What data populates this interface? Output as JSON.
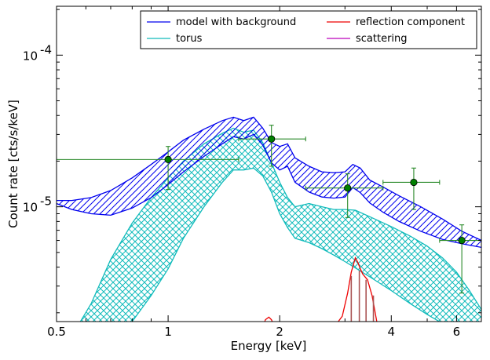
{
  "chart_data": {
    "type": "line",
    "xlabel": "Energy [keV]",
    "ylabel": "Count rate [cts/s/keV]",
    "x_scale": "log",
    "y_scale": "log",
    "xlim": [
      0.5,
      7.0
    ],
    "ylim": [
      1.75e-06,
      0.00021
    ],
    "x_ticks": [
      {
        "value": 0.5,
        "label": "0.5"
      },
      {
        "value": 1,
        "label": "1"
      },
      {
        "value": 2,
        "label": "2"
      },
      {
        "value": 4,
        "label": "4"
      },
      {
        "value": 6,
        "label": "6"
      }
    ],
    "y_ticks": [
      {
        "value": 1e-05,
        "base": "10",
        "exp": "-5"
      },
      {
        "value": 0.0001,
        "base": "10",
        "exp": "-4"
      }
    ],
    "legend": {
      "placement": "top-right",
      "entries": [
        {
          "label": "model with background",
          "color": "#0000ee"
        },
        {
          "label": "reflection component",
          "color": "#ee0000"
        },
        {
          "label": "torus",
          "color": "#11bbbb"
        },
        {
          "label": "scattering",
          "color": "#bb00bb"
        }
      ]
    },
    "colors": {
      "model": "#0000ee",
      "torus": "#11bbbb",
      "reflection": "#ee0000",
      "scattering": "#bb00bb",
      "data": "#2a8a2a",
      "marker": "#008000"
    },
    "series": [
      {
        "name": "model with background",
        "kind": "band",
        "x": [
          0.5,
          0.55,
          0.62,
          0.7,
          0.8,
          0.9,
          1.0,
          1.1,
          1.25,
          1.4,
          1.5,
          1.6,
          1.7,
          1.8,
          1.9,
          2.0,
          2.1,
          2.2,
          2.4,
          2.6,
          2.8,
          3.0,
          3.15,
          3.3,
          3.5,
          3.8,
          4.2,
          4.8,
          5.5,
          6.2,
          7.0
        ],
        "upper": [
          1.1e-05,
          1.1e-05,
          1.15e-05,
          1.28e-05,
          1.55e-05,
          1.9e-05,
          2.3e-05,
          2.75e-05,
          3.25e-05,
          3.7e-05,
          3.9e-05,
          3.7e-05,
          3.9e-05,
          3.3e-05,
          2.65e-05,
          2.5e-05,
          2.6e-05,
          2.1e-05,
          1.85e-05,
          1.7e-05,
          1.68e-05,
          1.7e-05,
          1.9e-05,
          1.8e-05,
          1.5e-05,
          1.35e-05,
          1.18e-05,
          1e-05,
          8.3e-06,
          6.9e-06,
          6e-06
        ],
        "lower": [
          1.05e-05,
          9.6e-06,
          9e-06,
          8.8e-06,
          9.8e-06,
          1.15e-05,
          1.4e-05,
          1.7e-05,
          2.15e-05,
          2.6e-05,
          2.9e-05,
          2.8e-05,
          3e-05,
          2.55e-05,
          1.95e-05,
          1.75e-05,
          1.85e-05,
          1.45e-05,
          1.25e-05,
          1.16e-05,
          1.14e-05,
          1.16e-05,
          1.34e-05,
          1.24e-05,
          1.06e-05,
          9.2e-06,
          8e-06,
          6.9e-06,
          6.1e-06,
          5.7e-06,
          5.4e-06
        ]
      },
      {
        "name": "torus",
        "kind": "band",
        "x": [
          0.58,
          0.62,
          0.7,
          0.8,
          0.9,
          1.0,
          1.1,
          1.25,
          1.4,
          1.5,
          1.6,
          1.7,
          1.8,
          1.9,
          2.0,
          2.1,
          2.2,
          2.4,
          2.6,
          2.8,
          3.0,
          3.2,
          3.5,
          4.0,
          4.5,
          5.0,
          5.5,
          6.0,
          6.5,
          7.0
        ],
        "upper": [
          1.75e-06,
          2.3e-06,
          4.5e-06,
          7.8e-06,
          1.15e-05,
          1.55e-05,
          2e-05,
          2.6e-05,
          3.05e-05,
          3.3e-05,
          3.1e-05,
          3.2e-05,
          2.65e-05,
          1.95e-05,
          1.45e-05,
          1.15e-05,
          1e-05,
          1.05e-05,
          1e-05,
          9.6e-06,
          9.6e-06,
          9.5e-06,
          8.6e-06,
          7.4e-06,
          6.4e-06,
          5.5e-06,
          4.6e-06,
          3.7e-06,
          2.8e-06,
          2.1e-06
        ],
        "lower": [
          1.2e-06,
          1.2e-06,
          1.4e-06,
          1.75e-06,
          2.6e-06,
          3.9e-06,
          6.2e-06,
          1e-05,
          1.45e-05,
          1.75e-05,
          1.75e-05,
          1.8e-05,
          1.6e-05,
          1.25e-05,
          9e-06,
          7.3e-06,
          6.2e-06,
          5.8e-06,
          5.3e-06,
          4.8e-06,
          4.35e-06,
          3.95e-06,
          3.45e-06,
          2.8e-06,
          2.3e-06,
          1.95e-06,
          1.7e-06,
          1.5e-06,
          1.35e-06,
          1.2e-06
        ]
      },
      {
        "name": "reflection component",
        "kind": "line",
        "x": [
          1.8,
          1.83,
          1.87,
          1.9,
          1.94,
          2.8,
          2.95,
          3.05,
          3.12,
          3.2,
          3.25,
          3.3,
          3.35,
          3.45,
          3.55,
          3.62,
          3.68
        ],
        "y": [
          1.6e-06,
          1.8e-06,
          1.87e-06,
          1.8e-06,
          1.6e-06,
          1.6e-06,
          1.9e-06,
          2.7e-06,
          3.7e-06,
          4.6e-06,
          4.3e-06,
          3.9e-06,
          3.6e-06,
          3.3e-06,
          2.6e-06,
          2e-06,
          1.6e-06
        ]
      },
      {
        "name": "reflection component (bins)",
        "kind": "bins",
        "x": [
          3.12,
          3.28,
          3.42,
          3.58
        ],
        "top": [
          3.5e-06,
          3.8e-06,
          3.3e-06,
          2.6e-06
        ]
      },
      {
        "name": "data",
        "kind": "points",
        "points": [
          {
            "x": 1.0,
            "y": 2.05e-05,
            "xlo": 0.5,
            "xhi": 1.55,
            "ylo": 1.3e-05,
            "yhi": 2.5e-05
          },
          {
            "x": 1.9,
            "y": 2.8e-05,
            "xlo": 1.55,
            "xhi": 2.35,
            "ylo": 1.85e-05,
            "yhi": 3.45e-05
          },
          {
            "x": 3.05,
            "y": 1.33e-05,
            "xlo": 2.35,
            "xhi": 3.8,
            "ylo": 8.5e-06,
            "yhi": 1.65e-05
          },
          {
            "x": 4.6,
            "y": 1.45e-05,
            "xlo": 3.8,
            "xhi": 5.4,
            "ylo": 9.6e-06,
            "yhi": 1.8e-05
          },
          {
            "x": 6.2,
            "y": 6e-06,
            "xlo": 5.4,
            "xhi": 7.0,
            "ylo": 2.7e-06,
            "yhi": 7.6e-06
          }
        ]
      }
    ]
  }
}
